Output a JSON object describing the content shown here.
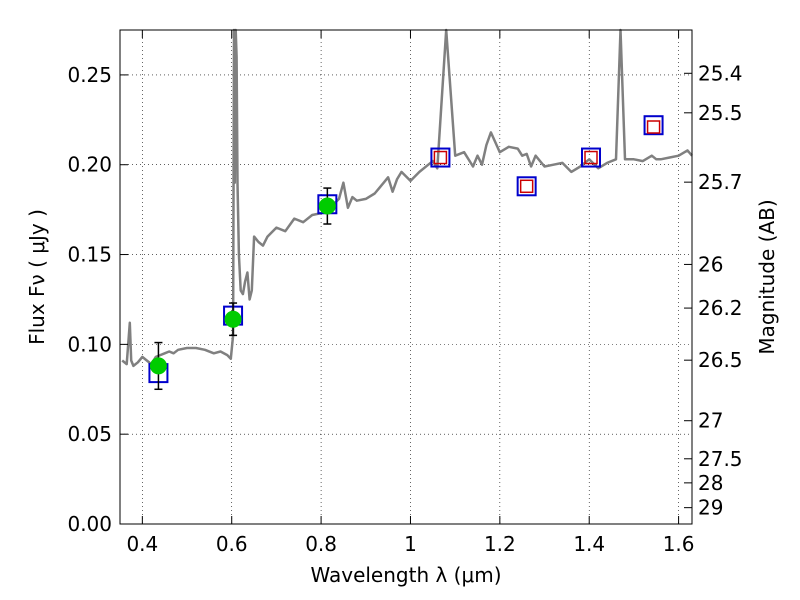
{
  "chart_data": {
    "type": "scatter",
    "xlabel": "Wavelength  λ (μm)",
    "ylabel": "Flux  Fν ( μJy )",
    "ylabel_right": "Magnitude (AB)",
    "xlim": [
      0.35,
      1.63
    ],
    "ylim": [
      0.0,
      0.275
    ],
    "grid": true,
    "x_ticks": [
      0.4,
      0.6,
      0.8,
      1.0,
      1.2,
      1.4,
      1.6
    ],
    "x_tick_labels": [
      "0.4",
      "0.6",
      "0.8",
      "1",
      "1.2",
      "1.4",
      "1.6"
    ],
    "y_ticks": [
      0.0,
      0.05,
      0.1,
      0.15,
      0.2,
      0.25
    ],
    "y_tick_labels": [
      "0.00",
      "0.05",
      "0.10",
      "0.15",
      "0.20",
      "0.25"
    ],
    "right_ticks": [
      {
        "label": "25.4",
        "flux": 0.2509
      },
      {
        "label": "25.5",
        "flux": 0.2289
      },
      {
        "label": "25.7",
        "flux": 0.1903
      },
      {
        "label": "26",
        "flux": 0.1445
      },
      {
        "label": "26.2",
        "flux": 0.1202
      },
      {
        "label": "26.5",
        "flux": 0.0912
      },
      {
        "label": "27",
        "flux": 0.0575
      },
      {
        "label": "27.5",
        "flux": 0.0363
      },
      {
        "label": "28",
        "flux": 0.0229
      },
      {
        "label": "29",
        "flux": 0.0091
      }
    ],
    "series": [
      {
        "kind": "model_spectrum",
        "color": "#808080",
        "x": [
          0.355,
          0.365,
          0.372,
          0.375,
          0.38,
          0.39,
          0.4,
          0.41,
          0.42,
          0.43,
          0.44,
          0.45,
          0.46,
          0.47,
          0.48,
          0.5,
          0.52,
          0.54,
          0.56,
          0.575,
          0.59,
          0.598,
          0.603,
          0.605,
          0.607,
          0.609,
          0.611,
          0.613,
          0.616,
          0.62,
          0.625,
          0.63,
          0.635,
          0.64,
          0.645,
          0.65,
          0.66,
          0.67,
          0.68,
          0.7,
          0.72,
          0.74,
          0.76,
          0.78,
          0.8,
          0.82,
          0.84,
          0.85,
          0.86,
          0.87,
          0.88,
          0.9,
          0.92,
          0.94,
          0.95,
          0.96,
          0.97,
          0.98,
          1.0,
          1.02,
          1.04,
          1.05,
          1.06,
          1.08,
          1.1,
          1.12,
          1.14,
          1.15,
          1.16,
          1.17,
          1.18,
          1.2,
          1.22,
          1.24,
          1.25,
          1.26,
          1.27,
          1.28,
          1.3,
          1.32,
          1.34,
          1.36,
          1.38,
          1.4,
          1.42,
          1.44,
          1.46,
          1.47,
          1.48,
          1.5,
          1.52,
          1.54,
          1.55,
          1.56,
          1.58,
          1.6,
          1.62,
          1.63
        ],
        "y": [
          0.091,
          0.089,
          0.112,
          0.091,
          0.088,
          0.09,
          0.093,
          0.091,
          0.089,
          0.093,
          0.094,
          0.095,
          0.096,
          0.095,
          0.097,
          0.098,
          0.098,
          0.097,
          0.095,
          0.096,
          0.094,
          0.092,
          0.105,
          0.275,
          0.19,
          0.275,
          0.26,
          0.19,
          0.15,
          0.13,
          0.128,
          0.135,
          0.14,
          0.125,
          0.13,
          0.16,
          0.157,
          0.155,
          0.16,
          0.165,
          0.163,
          0.17,
          0.168,
          0.172,
          0.173,
          0.176,
          0.181,
          0.19,
          0.176,
          0.182,
          0.18,
          0.181,
          0.184,
          0.19,
          0.193,
          0.185,
          0.192,
          0.196,
          0.191,
          0.196,
          0.2,
          0.202,
          0.198,
          0.275,
          0.205,
          0.207,
          0.199,
          0.205,
          0.2,
          0.211,
          0.218,
          0.207,
          0.21,
          0.209,
          0.205,
          0.206,
          0.199,
          0.205,
          0.199,
          0.2,
          0.201,
          0.196,
          0.199,
          0.203,
          0.198,
          0.201,
          0.203,
          0.275,
          0.203,
          0.203,
          0.202,
          0.205,
          0.203,
          0.203,
          0.204,
          0.205,
          0.208,
          0.205
        ]
      },
      {
        "kind": "model_photometry",
        "marker": "square",
        "color": "#0000cc",
        "x": [
          0.436,
          0.603,
          0.814,
          1.067,
          1.26,
          1.404,
          1.544
        ],
        "y": [
          0.084,
          0.116,
          0.178,
          0.204,
          0.188,
          0.204,
          0.222
        ]
      },
      {
        "kind": "observed",
        "marker": "circle",
        "color": "#00cc00",
        "x": [
          0.436,
          0.603,
          0.814
        ],
        "y": [
          0.088,
          0.114,
          0.177
        ],
        "yerr": [
          0.013,
          0.009,
          0.01
        ]
      },
      {
        "kind": "upper_limits",
        "marker": "square",
        "color": "#cc0000",
        "x": [
          1.067,
          1.26,
          1.404,
          1.544
        ],
        "y": [
          0.204,
          0.188,
          0.204,
          0.221
        ]
      }
    ]
  }
}
